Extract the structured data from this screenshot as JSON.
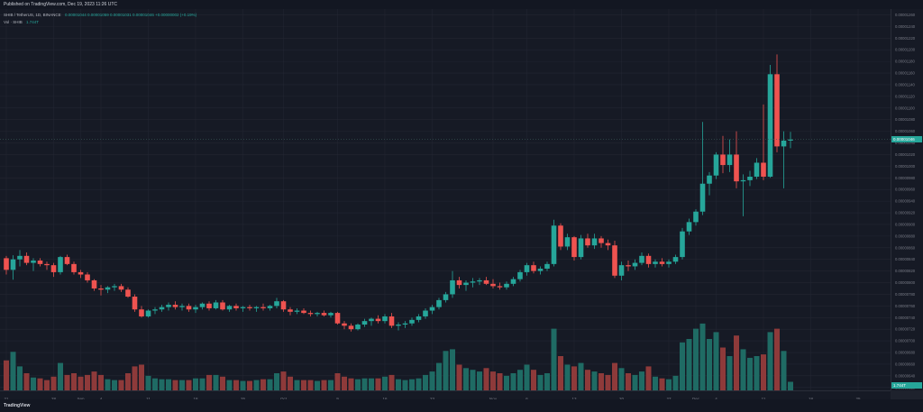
{
  "header": {
    "published": "Published on TradingView.com, Dec 19, 2023 11:26 UTC"
  },
  "legend": {
    "symbol": "SHIB / TetherUS, 1D, BINANCE",
    "ohlc": "0.00001044  0.00001059  0.00001031  0.00001046  +0.00000002 (+0.19%)",
    "volume_label": "Vol · SHIB",
    "volume_value": "1.744T"
  },
  "footer": {
    "brand": "TradingView"
  },
  "colors": {
    "up": "#26a69a",
    "down": "#ef5350",
    "up_vol": "#1f6b64",
    "down_vol": "#8e3a3a",
    "grid": "#232632",
    "background": "#161a25"
  },
  "price_tag": "0.00001046",
  "volume_tag": "1.744T",
  "chart_data": {
    "type": "candlestick",
    "price_ticks": [
      "0.00001260",
      "0.00001240",
      "0.00001220",
      "0.00001200",
      "0.00001180",
      "0.00001160",
      "0.00001140",
      "0.00001120",
      "0.00001100",
      "0.00001080",
      "0.00001060",
      "0.00001040",
      "0.00001020",
      "0.00001000",
      "0.00000980",
      "0.00000960",
      "0.00000940",
      "0.00000920",
      "0.00000900",
      "0.00000880",
      "0.00000860",
      "0.00000840",
      "0.00000820",
      "0.00000800",
      "0.00000780",
      "0.00000760",
      "0.00000740",
      "0.00000720",
      "0.00000700",
      "0.00000680",
      "0.00000660",
      "0.00000640",
      "0.00000620"
    ],
    "time_ticks": [
      {
        "label": "21",
        "day": 0
      },
      {
        "label": "28",
        "day": 7
      },
      {
        "label": "Sep",
        "day": 11
      },
      {
        "label": "4",
        "day": 14
      },
      {
        "label": "11",
        "day": 21
      },
      {
        "label": "18",
        "day": 28
      },
      {
        "label": "25",
        "day": 35
      },
      {
        "label": "Oct",
        "day": 41
      },
      {
        "label": "9",
        "day": 49
      },
      {
        "label": "16",
        "day": 56
      },
      {
        "label": "23",
        "day": 63
      },
      {
        "label": "Nov",
        "day": 72
      },
      {
        "label": "6",
        "day": 77
      },
      {
        "label": "13",
        "day": 84
      },
      {
        "label": "20",
        "day": 91
      },
      {
        "label": "27",
        "day": 98
      },
      {
        "label": "Dec",
        "day": 102
      },
      {
        "label": "4",
        "day": 105
      },
      {
        "label": "11",
        "day": 112
      },
      {
        "label": "18",
        "day": 119
      },
      {
        "label": "25",
        "day": 126
      }
    ],
    "candles": [
      [
        8.42e-06,
        8.46e-06,
        8.14e-06,
        8.22e-06,
        0.35
      ],
      [
        8.22e-06,
        8.47e-06,
        8.05e-06,
        8.4e-06,
        0.45
      ],
      [
        8.4e-06,
        8.56e-06,
        8.28e-06,
        8.46e-06,
        0.28
      ],
      [
        8.46e-06,
        8.52e-06,
        8.3e-06,
        8.34e-06,
        0.2
      ],
      [
        8.34e-06,
        8.42e-06,
        8.2e-06,
        8.38e-06,
        0.15
      ],
      [
        8.38e-06,
        8.42e-06,
        8.28e-06,
        8.32e-06,
        0.14
      ],
      [
        8.32e-06,
        8.36e-06,
        8.22e-06,
        8.3e-06,
        0.12
      ],
      [
        8.3e-06,
        8.34e-06,
        8.1e-06,
        8.18e-06,
        0.16
      ],
      [
        8.18e-06,
        8.46e-06,
        8.14e-06,
        8.44e-06,
        0.32
      ],
      [
        8.44e-06,
        8.48e-06,
        8.3e-06,
        8.32e-06,
        0.18
      ],
      [
        8.32e-06,
        8.36e-06,
        8.14e-06,
        8.18e-06,
        0.2
      ],
      [
        8.18e-06,
        8.22e-06,
        8.08e-06,
        8.14e-06,
        0.16
      ],
      [
        8.14e-06,
        8.18e-06,
        8e-06,
        8.04e-06,
        0.18
      ],
      [
        8.04e-06,
        8.06e-06,
        7.86e-06,
        7.9e-06,
        0.22
      ],
      [
        7.9e-06,
        7.96e-06,
        7.78e-06,
        7.88e-06,
        0.18
      ],
      [
        7.88e-06,
        7.94e-06,
        7.82e-06,
        7.92e-06,
        0.13
      ],
      [
        7.92e-06,
        7.98e-06,
        7.86e-06,
        7.94e-06,
        0.12
      ],
      [
        7.94e-06,
        7.98e-06,
        7.84e-06,
        7.88e-06,
        0.12
      ],
      [
        7.88e-06,
        7.92e-06,
        7.74e-06,
        7.76e-06,
        0.2
      ],
      [
        7.76e-06,
        7.8e-06,
        7.5e-06,
        7.54e-06,
        0.28
      ],
      [
        7.54e-06,
        7.6e-06,
        7.4e-06,
        7.42e-06,
        0.3
      ],
      [
        7.42e-06,
        7.54e-06,
        7.4e-06,
        7.52e-06,
        0.17
      ],
      [
        7.52e-06,
        7.58e-06,
        7.46e-06,
        7.54e-06,
        0.14
      ],
      [
        7.54e-06,
        7.62e-06,
        7.5e-06,
        7.58e-06,
        0.13
      ],
      [
        7.58e-06,
        7.66e-06,
        7.52e-06,
        7.62e-06,
        0.13
      ],
      [
        7.62e-06,
        7.68e-06,
        7.54e-06,
        7.58e-06,
        0.12
      ],
      [
        7.58e-06,
        7.64e-06,
        7.52e-06,
        7.6e-06,
        0.12
      ],
      [
        7.6e-06,
        7.64e-06,
        7.5e-06,
        7.54e-06,
        0.12
      ],
      [
        7.54e-06,
        7.62e-06,
        7.48e-06,
        7.58e-06,
        0.14
      ],
      [
        7.58e-06,
        7.66e-06,
        7.54e-06,
        7.64e-06,
        0.14
      ],
      [
        7.64e-06,
        7.68e-06,
        7.52e-06,
        7.56e-06,
        0.18
      ],
      [
        7.56e-06,
        7.7e-06,
        7.54e-06,
        7.66e-06,
        0.18
      ],
      [
        7.66e-06,
        7.7e-06,
        7.52e-06,
        7.54e-06,
        0.16
      ],
      [
        7.54e-06,
        7.62e-06,
        7.5e-06,
        7.6e-06,
        0.12
      ],
      [
        7.6e-06,
        7.64e-06,
        7.52e-06,
        7.56e-06,
        0.12
      ],
      [
        7.56e-06,
        7.6e-06,
        7.5e-06,
        7.58e-06,
        0.11
      ],
      [
        7.58e-06,
        7.62e-06,
        7.52e-06,
        7.56e-06,
        0.11
      ],
      [
        7.56e-06,
        7.6e-06,
        7.5e-06,
        7.58e-06,
        0.12
      ],
      [
        7.58e-06,
        7.64e-06,
        7.52e-06,
        7.56e-06,
        0.13
      ],
      [
        7.56e-06,
        7.62e-06,
        7.52e-06,
        7.6e-06,
        0.13
      ],
      [
        7.6e-06,
        7.74e-06,
        7.56e-06,
        7.68e-06,
        0.2
      ],
      [
        7.68e-06,
        7.7e-06,
        7.5e-06,
        7.54e-06,
        0.22
      ],
      [
        7.54e-06,
        7.58e-06,
        7.44e-06,
        7.5e-06,
        0.16
      ],
      [
        7.5e-06,
        7.56e-06,
        7.46e-06,
        7.52e-06,
        0.12
      ],
      [
        7.52e-06,
        7.56e-06,
        7.46e-06,
        7.48e-06,
        0.12
      ],
      [
        7.48e-06,
        7.52e-06,
        7.42e-06,
        7.46e-06,
        0.12
      ],
      [
        7.46e-06,
        7.5e-06,
        7.42e-06,
        7.48e-06,
        0.11
      ],
      [
        7.48e-06,
        7.52e-06,
        7.42e-06,
        7.44e-06,
        0.12
      ],
      [
        7.44e-06,
        7.5e-06,
        7.4e-06,
        7.48e-06,
        0.12
      ],
      [
        7.48e-06,
        7.5e-06,
        7.28e-06,
        7.3e-06,
        0.2
      ],
      [
        7.3e-06,
        7.34e-06,
        7.2e-06,
        7.26e-06,
        0.16
      ],
      [
        7.26e-06,
        7.3e-06,
        7.16e-06,
        7.2e-06,
        0.14
      ],
      [
        7.2e-06,
        7.3e-06,
        7.18e-06,
        7.28e-06,
        0.13
      ],
      [
        7.28e-06,
        7.38e-06,
        7.24e-06,
        7.34e-06,
        0.14
      ],
      [
        7.34e-06,
        7.4e-06,
        7.26e-06,
        7.38e-06,
        0.14
      ],
      [
        7.38e-06,
        7.44e-06,
        7.3e-06,
        7.34e-06,
        0.14
      ],
      [
        7.34e-06,
        7.46e-06,
        7.3e-06,
        7.42e-06,
        0.16
      ],
      [
        7.42e-06,
        7.48e-06,
        7.22e-06,
        7.26e-06,
        0.18
      ],
      [
        7.26e-06,
        7.32e-06,
        7.18e-06,
        7.28e-06,
        0.13
      ],
      [
        7.28e-06,
        7.34e-06,
        7.22e-06,
        7.3e-06,
        0.12
      ],
      [
        7.3e-06,
        7.4e-06,
        7.26e-06,
        7.36e-06,
        0.13
      ],
      [
        7.36e-06,
        7.46e-06,
        7.32e-06,
        7.42e-06,
        0.14
      ],
      [
        7.42e-06,
        7.56e-06,
        7.38e-06,
        7.52e-06,
        0.18
      ],
      [
        7.52e-06,
        7.62e-06,
        7.46e-06,
        7.58e-06,
        0.22
      ],
      [
        7.58e-06,
        7.74e-06,
        7.54e-06,
        7.7e-06,
        0.32
      ],
      [
        7.7e-06,
        7.84e-06,
        7.66e-06,
        7.8e-06,
        0.46
      ],
      [
        7.8e-06,
        8.2e-06,
        7.74e-06,
        8.04e-06,
        0.48
      ],
      [
        8.04e-06,
        8.1e-06,
        7.9e-06,
        7.96e-06,
        0.3
      ],
      [
        7.96e-06,
        8.04e-06,
        7.86e-06,
        8e-06,
        0.26
      ],
      [
        8e-06,
        8.08e-06,
        7.92e-06,
        8.02e-06,
        0.24
      ],
      [
        8.02e-06,
        8.08e-06,
        7.96e-06,
        8.04e-06,
        0.22
      ],
      [
        8.04e-06,
        8.1e-06,
        7.96e-06,
        7.98e-06,
        0.26
      ],
      [
        7.98e-06,
        8.06e-06,
        7.9e-06,
        7.94e-06,
        0.22
      ],
      [
        7.94e-06,
        8e-06,
        7.88e-06,
        7.92e-06,
        0.2
      ],
      [
        7.92e-06,
        8.02e-06,
        7.88e-06,
        7.98e-06,
        0.17
      ],
      [
        7.98e-06,
        8.1e-06,
        7.94e-06,
        8.06e-06,
        0.2
      ],
      [
        8.06e-06,
        8.22e-06,
        8.02e-06,
        8.18e-06,
        0.24
      ],
      [
        8.18e-06,
        8.34e-06,
        8.12e-06,
        8.3e-06,
        0.3
      ],
      [
        8.3e-06,
        8.36e-06,
        8.16e-06,
        8.2e-06,
        0.24
      ],
      [
        8.2e-06,
        8.28e-06,
        8.14e-06,
        8.24e-06,
        0.18
      ],
      [
        8.24e-06,
        8.36e-06,
        8.2e-06,
        8.32e-06,
        0.2
      ],
      [
        8.32e-06,
        9.08e-06,
        8.28e-06,
        8.98e-06,
        0.72
      ],
      [
        8.98e-06,
        9.02e-06,
        8.56e-06,
        8.62e-06,
        0.4
      ],
      [
        8.62e-06,
        8.84e-06,
        8.56e-06,
        8.78e-06,
        0.3
      ],
      [
        8.78e-06,
        8.8e-06,
        8.38e-06,
        8.44e-06,
        0.28
      ],
      [
        8.44e-06,
        8.82e-06,
        8.4e-06,
        8.76e-06,
        0.32
      ],
      [
        8.76e-06,
        8.84e-06,
        8.6e-06,
        8.64e-06,
        0.24
      ],
      [
        8.64e-06,
        8.84e-06,
        8.58e-06,
        8.76e-06,
        0.22
      ],
      [
        8.76e-06,
        8.8e-06,
        8.6e-06,
        8.68e-06,
        0.2
      ],
      [
        8.68e-06,
        8.74e-06,
        8.56e-06,
        8.64e-06,
        0.18
      ],
      [
        8.64e-06,
        8.72e-06,
        8.08e-06,
        8.12e-06,
        0.32
      ],
      [
        8.12e-06,
        8.36e-06,
        8.04e-06,
        8.3e-06,
        0.26
      ],
      [
        8.3e-06,
        8.38e-06,
        8.2e-06,
        8.28e-06,
        0.2
      ],
      [
        8.28e-06,
        8.4e-06,
        8.22e-06,
        8.34e-06,
        0.18
      ],
      [
        8.34e-06,
        8.52e-06,
        8.3e-06,
        8.46e-06,
        0.22
      ],
      [
        8.46e-06,
        8.5e-06,
        8.26e-06,
        8.32e-06,
        0.28
      ],
      [
        8.32e-06,
        8.4e-06,
        8.26e-06,
        8.36e-06,
        0.16
      ],
      [
        8.36e-06,
        8.42e-06,
        8.28e-06,
        8.32e-06,
        0.14
      ],
      [
        8.32e-06,
        8.4e-06,
        8.26e-06,
        8.36e-06,
        0.13
      ],
      [
        8.36e-06,
        8.48e-06,
        8.32e-06,
        8.44e-06,
        0.17
      ],
      [
        8.44e-06,
        8.94e-06,
        8.4e-06,
        8.88e-06,
        0.56
      ],
      [
        8.88e-06,
        9.1e-06,
        8.82e-06,
        9.04e-06,
        0.6
      ],
      [
        9.04e-06,
        9.26e-06,
        8.98e-06,
        9.22e-06,
        0.72
      ],
      [
        9.22e-06,
        1.076e-05,
        9.16e-06,
        9.7e-06,
        0.78
      ],
      [
        9.7e-06,
        9.9e-06,
        9.5e-06,
        9.84e-06,
        0.6
      ],
      [
        9.84e-06,
        1.024e-05,
        9.78e-06,
        1.02e-05,
        0.68
      ],
      [
        1.02e-05,
        1.052e-05,
        9.88e-06,
        1.002e-05,
        0.5
      ],
      [
        1.002e-05,
        1.046e-05,
        9.9e-06,
        1.02e-05,
        0.4
      ],
      [
        1.02e-05,
        1.06e-05,
        9.62e-06,
        9.74e-06,
        0.64
      ],
      [
        9.74e-06,
        9.86e-06,
        9.14e-06,
        9.76e-06,
        0.48
      ],
      [
        9.76e-06,
        9.92e-06,
        9.66e-06,
        9.82e-06,
        0.38
      ],
      [
        9.82e-06,
        1.014e-05,
        9.78e-06,
        1.006e-05,
        0.4
      ],
      [
        1.006e-05,
        1.106e-05,
        9.76e-06,
        9.82e-06,
        0.42
      ],
      [
        9.82e-06,
        1.174e-05,
        9.8e-06,
        1.158e-05,
        0.68
      ],
      [
        1.158e-05,
        1.192e-05,
        1.024e-05,
        1.034e-05,
        0.72
      ],
      [
        1.034e-05,
        1.06e-05,
        9.62e-06,
        1.044e-05,
        0.46
      ],
      [
        1.044e-05,
        1.059e-05,
        1.031e-05,
        1.046e-05,
        0.1
      ]
    ]
  }
}
